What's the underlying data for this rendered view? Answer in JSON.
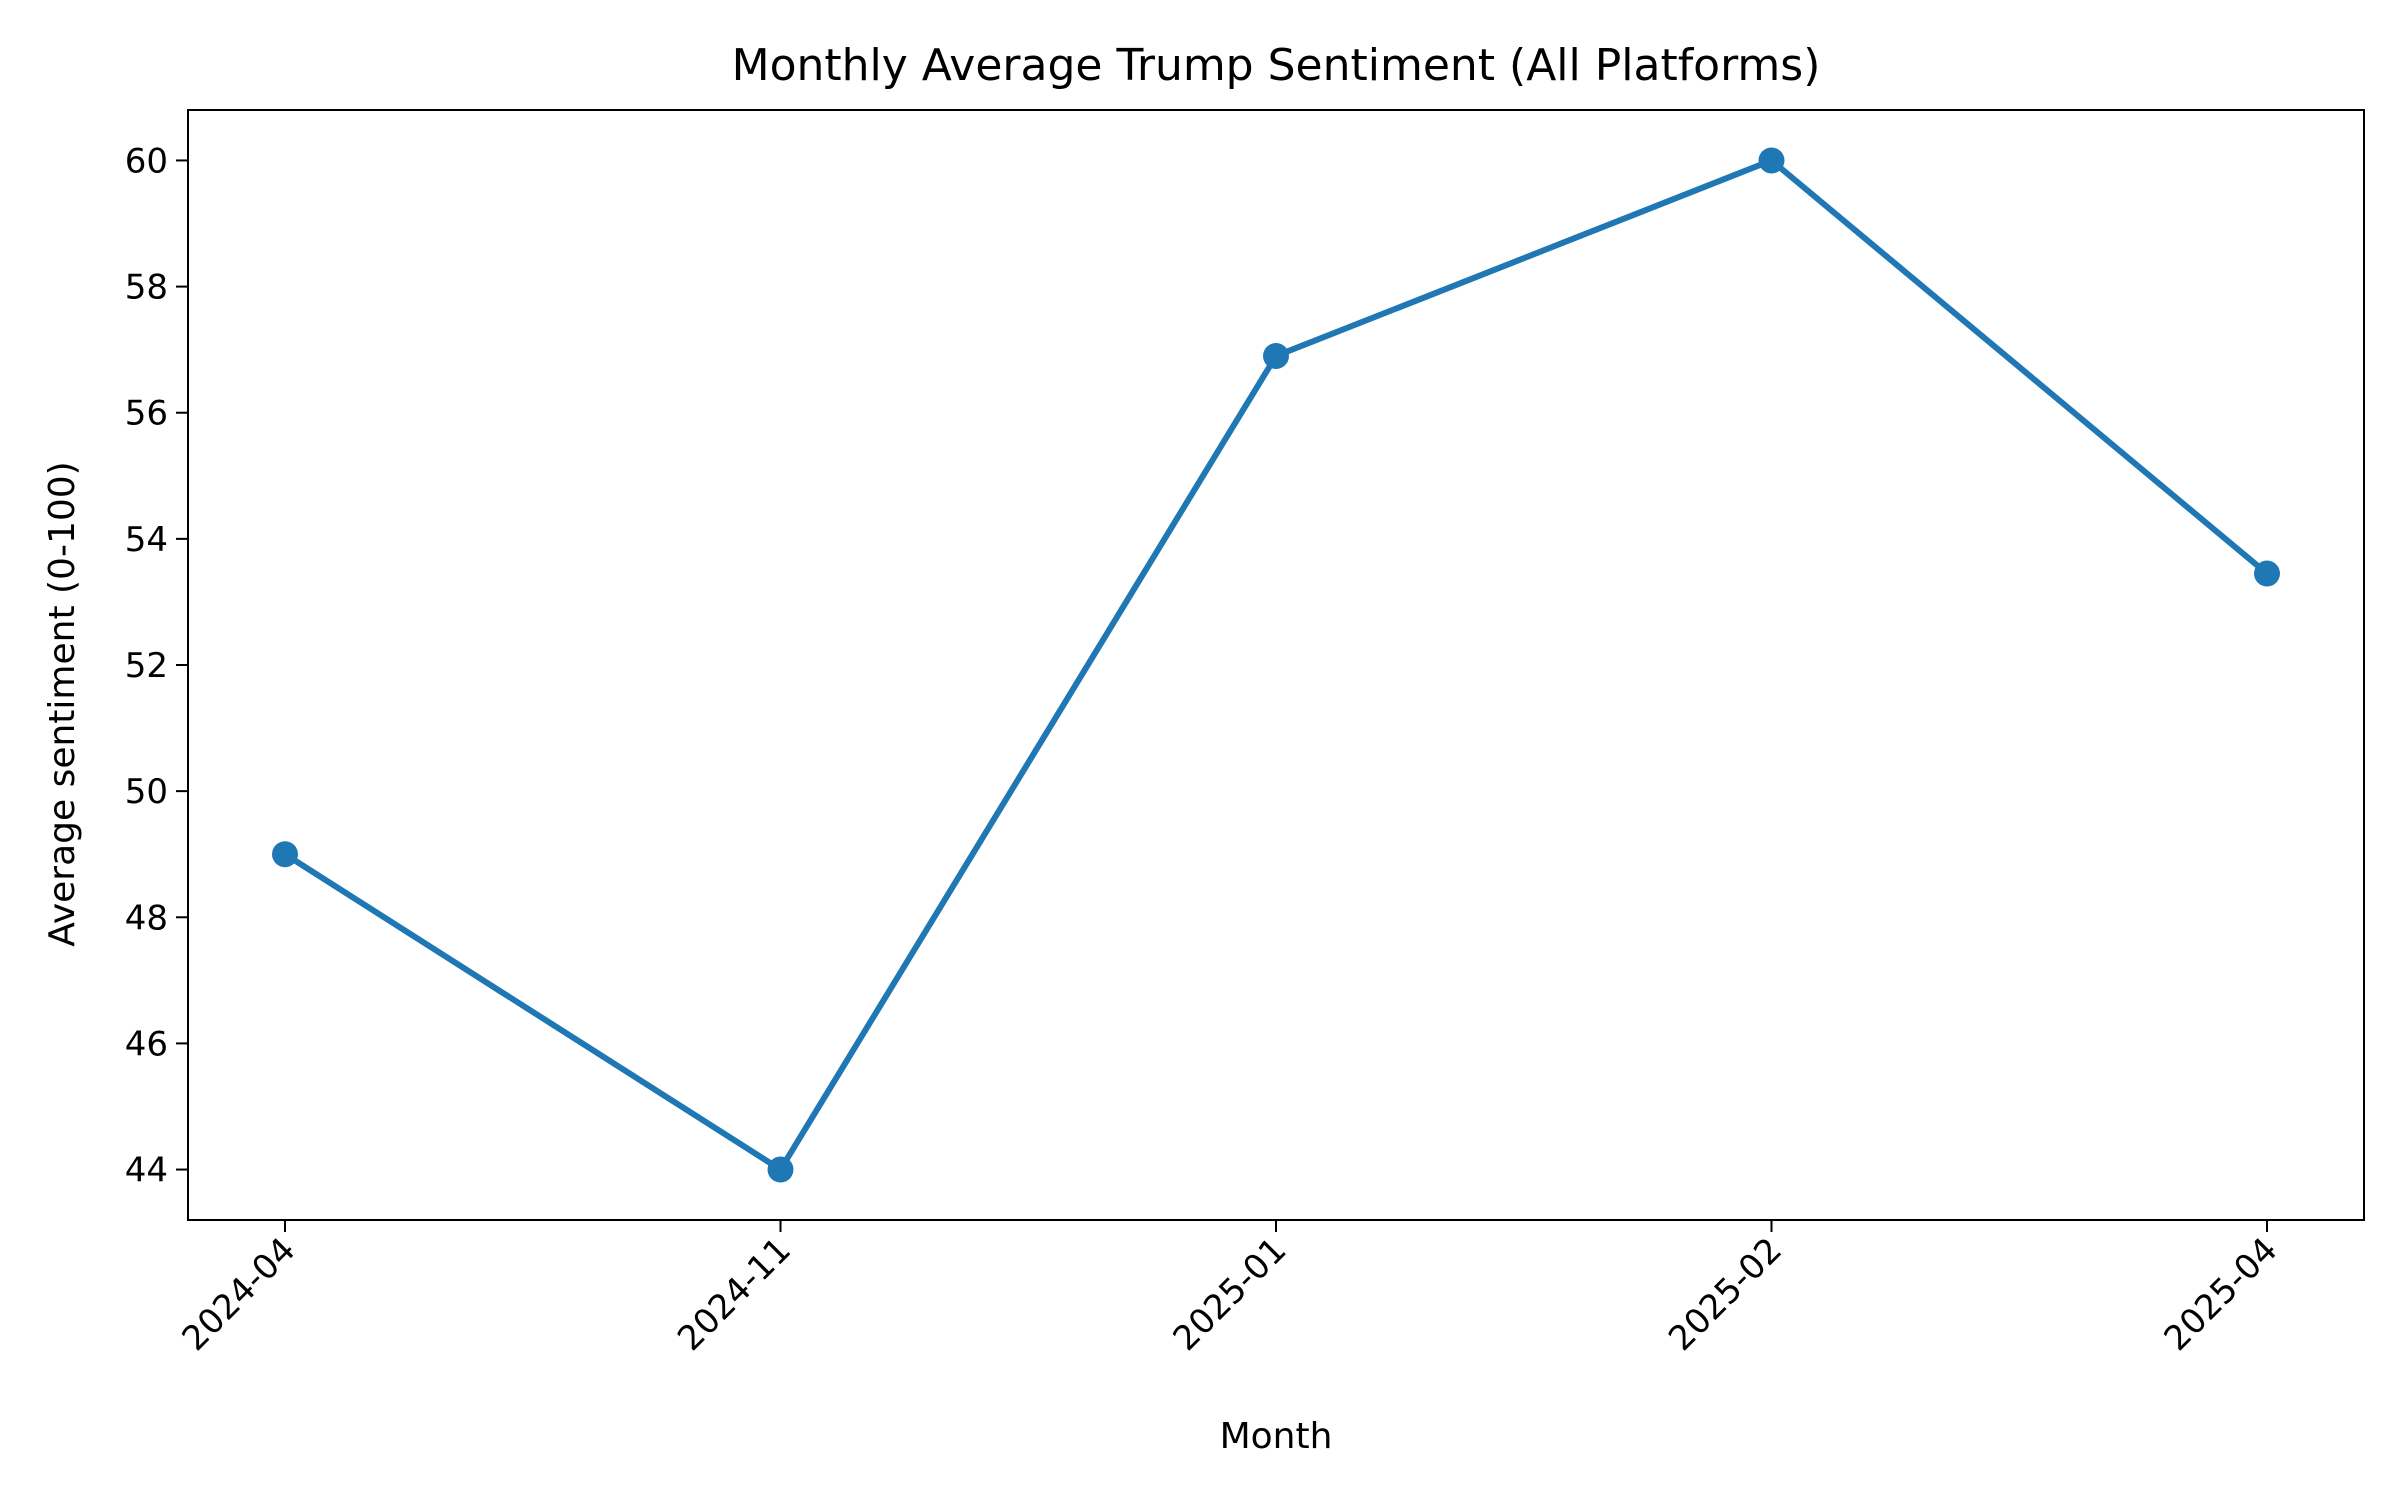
{
  "chart_data": {
    "type": "line",
    "title": "Monthly Average Trump Sentiment (All Platforms)",
    "xlabel": "Month",
    "ylabel": "Average sentiment (0-100)",
    "categories": [
      "2024-04",
      "2024-11",
      "2025-01",
      "2025-02",
      "2025-04"
    ],
    "series": [
      {
        "values": [
          49.0,
          44.0,
          56.9,
          60.0,
          53.45
        ],
        "color": "#1f77b4",
        "marker": "circle"
      }
    ],
    "ylim": [
      43.2,
      60.8
    ],
    "yticks": [
      44,
      46,
      48,
      50,
      52,
      54,
      56,
      58,
      60
    ],
    "grid": false,
    "legend": "none"
  }
}
